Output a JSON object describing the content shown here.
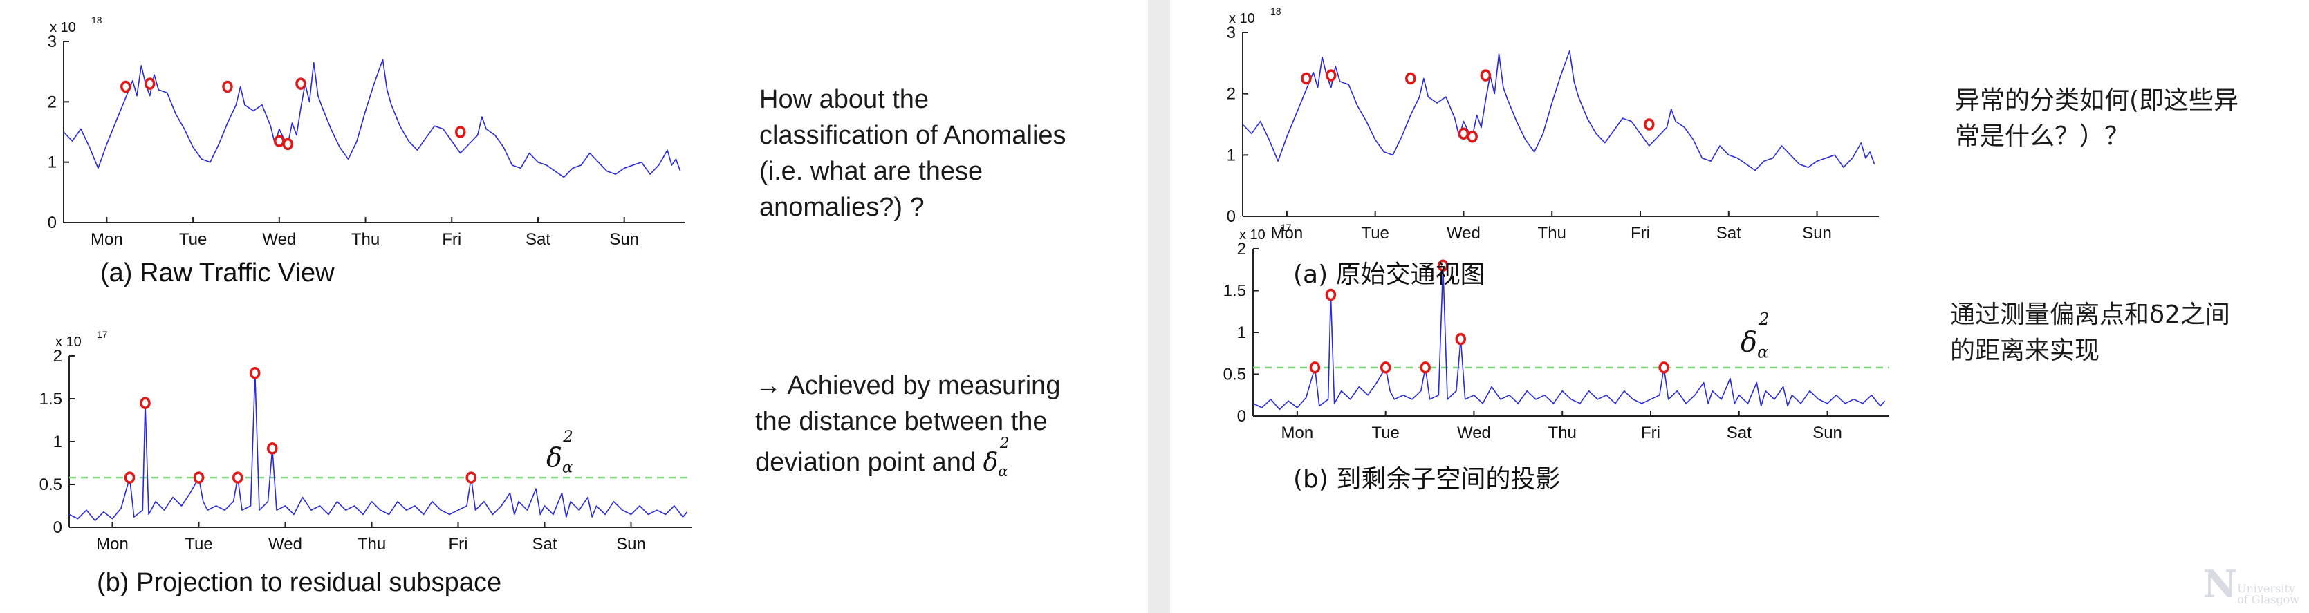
{
  "left": {
    "caption_a": "(a) Raw Traffic View",
    "caption_b": "(b) Projection to residual subspace",
    "question_lines": [
      "How about the",
      "classification of Anomalies",
      "(i.e. what are these",
      "anomalies?) ?"
    ],
    "answer_lines": [
      "→ Achieved by measuring",
      "the distance between the",
      "deviation point and"
    ],
    "delta_symbol": "δ",
    "delta_sub": "α",
    "delta_sup": "2"
  },
  "right": {
    "caption_a": "(a) 原始交通视图",
    "caption_b": "(b) 到剩余子空间的投影",
    "question_lines": [
      "异常的分类如何(即这些异",
      "常是什么？）？"
    ],
    "answer_lines": [
      "通过测量偏离点和δ2之间",
      "的距离来实现"
    ],
    "delta_symbol": "δ",
    "delta_sub": "α",
    "delta_sup": "2"
  },
  "watermark": {
    "big": "N",
    "line1": "University",
    "line2": "of Glasgow"
  },
  "colors": {
    "line": "#2a2ad8",
    "threshold": "#7fd67f",
    "marker": "#e01818",
    "axis": "#222222"
  },
  "chart_data": [
    {
      "id": "raw-traffic",
      "type": "line",
      "xlabel": "",
      "ylabel": "",
      "exponent_label": "x 10",
      "exponent_power": "18",
      "categories": [
        "Mon",
        "Tue",
        "Wed",
        "Thu",
        "Fri",
        "Sat",
        "Sun"
      ],
      "x_range": [
        0,
        7.2
      ],
      "ylim": [
        0,
        3
      ],
      "yticks": [
        0,
        1,
        2,
        3
      ],
      "series": [
        {
          "points": [
            [
              0.0,
              1.5
            ],
            [
              0.1,
              1.35
            ],
            [
              0.2,
              1.55
            ],
            [
              0.3,
              1.25
            ],
            [
              0.4,
              0.9
            ],
            [
              0.5,
              1.3
            ],
            [
              0.6,
              1.65
            ],
            [
              0.7,
              2.0
            ],
            [
              0.8,
              2.35
            ],
            [
              0.85,
              2.1
            ],
            [
              0.9,
              2.6
            ],
            [
              0.95,
              2.3
            ],
            [
              1.0,
              2.1
            ],
            [
              1.05,
              2.45
            ],
            [
              1.1,
              2.2
            ],
            [
              1.2,
              2.15
            ],
            [
              1.3,
              1.8
            ],
            [
              1.4,
              1.55
            ],
            [
              1.5,
              1.25
            ],
            [
              1.6,
              1.05
            ],
            [
              1.7,
              1.0
            ],
            [
              1.8,
              1.3
            ],
            [
              1.9,
              1.65
            ],
            [
              2.0,
              1.95
            ],
            [
              2.05,
              2.25
            ],
            [
              2.1,
              1.95
            ],
            [
              2.2,
              1.85
            ],
            [
              2.3,
              1.95
            ],
            [
              2.4,
              1.6
            ],
            [
              2.45,
              1.3
            ],
            [
              2.5,
              1.55
            ],
            [
              2.55,
              1.4
            ],
            [
              2.6,
              1.3
            ],
            [
              2.65,
              1.65
            ],
            [
              2.7,
              1.45
            ],
            [
              2.75,
              1.9
            ],
            [
              2.8,
              2.3
            ],
            [
              2.85,
              2.0
            ],
            [
              2.9,
              2.65
            ],
            [
              2.95,
              2.1
            ],
            [
              3.0,
              1.9
            ],
            [
              3.1,
              1.55
            ],
            [
              3.2,
              1.25
            ],
            [
              3.3,
              1.05
            ],
            [
              3.4,
              1.35
            ],
            [
              3.5,
              1.85
            ],
            [
              3.6,
              2.3
            ],
            [
              3.7,
              2.7
            ],
            [
              3.75,
              2.2
            ],
            [
              3.8,
              1.95
            ],
            [
              3.9,
              1.6
            ],
            [
              4.0,
              1.35
            ],
            [
              4.1,
              1.2
            ],
            [
              4.2,
              1.4
            ],
            [
              4.3,
              1.6
            ],
            [
              4.4,
              1.55
            ],
            [
              4.5,
              1.35
            ],
            [
              4.6,
              1.15
            ],
            [
              4.7,
              1.3
            ],
            [
              4.8,
              1.45
            ],
            [
              4.85,
              1.75
            ],
            [
              4.9,
              1.55
            ],
            [
              5.0,
              1.45
            ],
            [
              5.1,
              1.25
            ],
            [
              5.2,
              0.95
            ],
            [
              5.3,
              0.9
            ],
            [
              5.4,
              1.15
            ],
            [
              5.5,
              1.0
            ],
            [
              5.6,
              0.95
            ],
            [
              5.7,
              0.85
            ],
            [
              5.8,
              0.75
            ],
            [
              5.9,
              0.9
            ],
            [
              6.0,
              0.95
            ],
            [
              6.1,
              1.15
            ],
            [
              6.2,
              1.0
            ],
            [
              6.3,
              0.85
            ],
            [
              6.4,
              0.8
            ],
            [
              6.5,
              0.9
            ],
            [
              6.6,
              0.95
            ],
            [
              6.7,
              1.0
            ],
            [
              6.8,
              0.8
            ],
            [
              6.9,
              0.95
            ],
            [
              7.0,
              1.2
            ],
            [
              7.05,
              0.95
            ],
            [
              7.1,
              1.05
            ],
            [
              7.15,
              0.85
            ]
          ]
        }
      ],
      "anomalies": [
        [
          0.72,
          2.25
        ],
        [
          1.0,
          2.3
        ],
        [
          1.9,
          2.25
        ],
        [
          2.5,
          1.35
        ],
        [
          2.6,
          1.3
        ],
        [
          2.75,
          2.3
        ],
        [
          4.6,
          1.5
        ]
      ]
    },
    {
      "id": "residual-projection",
      "type": "line",
      "xlabel": "",
      "ylabel": "",
      "exponent_label": "x 10",
      "exponent_power": "17",
      "categories": [
        "Mon",
        "Tue",
        "Wed",
        "Thu",
        "Fri",
        "Sat",
        "Sun"
      ],
      "x_range": [
        0,
        7.2
      ],
      "ylim": [
        0,
        2
      ],
      "yticks": [
        0,
        0.5,
        1,
        1.5,
        2
      ],
      "ytick_labels": [
        "0",
        "0.5",
        "1",
        "1.5",
        "2"
      ],
      "threshold": 0.58,
      "series": [
        {
          "points": [
            [
              0.0,
              0.15
            ],
            [
              0.1,
              0.1
            ],
            [
              0.2,
              0.2
            ],
            [
              0.3,
              0.08
            ],
            [
              0.4,
              0.18
            ],
            [
              0.5,
              0.1
            ],
            [
              0.6,
              0.22
            ],
            [
              0.7,
              0.58
            ],
            [
              0.75,
              0.12
            ],
            [
              0.85,
              0.2
            ],
            [
              0.88,
              1.45
            ],
            [
              0.92,
              0.15
            ],
            [
              1.0,
              0.3
            ],
            [
              1.1,
              0.2
            ],
            [
              1.2,
              0.35
            ],
            [
              1.3,
              0.25
            ],
            [
              1.4,
              0.4
            ],
            [
              1.5,
              0.58
            ],
            [
              1.55,
              0.3
            ],
            [
              1.6,
              0.2
            ],
            [
              1.7,
              0.25
            ],
            [
              1.8,
              0.2
            ],
            [
              1.9,
              0.3
            ],
            [
              1.95,
              0.58
            ],
            [
              2.0,
              0.2
            ],
            [
              2.1,
              0.25
            ],
            [
              2.15,
              1.8
            ],
            [
              2.2,
              0.2
            ],
            [
              2.3,
              0.3
            ],
            [
              2.35,
              0.92
            ],
            [
              2.4,
              0.2
            ],
            [
              2.5,
              0.25
            ],
            [
              2.6,
              0.15
            ],
            [
              2.7,
              0.35
            ],
            [
              2.8,
              0.2
            ],
            [
              2.9,
              0.25
            ],
            [
              3.0,
              0.15
            ],
            [
              3.1,
              0.3
            ],
            [
              3.2,
              0.2
            ],
            [
              3.3,
              0.25
            ],
            [
              3.4,
              0.15
            ],
            [
              3.5,
              0.3
            ],
            [
              3.6,
              0.2
            ],
            [
              3.7,
              0.15
            ],
            [
              3.8,
              0.3
            ],
            [
              3.9,
              0.2
            ],
            [
              4.0,
              0.25
            ],
            [
              4.1,
              0.15
            ],
            [
              4.2,
              0.3
            ],
            [
              4.3,
              0.2
            ],
            [
              4.4,
              0.15
            ],
            [
              4.5,
              0.2
            ],
            [
              4.6,
              0.25
            ],
            [
              4.65,
              0.58
            ],
            [
              4.7,
              0.2
            ],
            [
              4.8,
              0.3
            ],
            [
              4.9,
              0.15
            ],
            [
              5.0,
              0.25
            ],
            [
              5.1,
              0.4
            ],
            [
              5.15,
              0.15
            ],
            [
              5.2,
              0.3
            ],
            [
              5.3,
              0.2
            ],
            [
              5.4,
              0.45
            ],
            [
              5.45,
              0.15
            ],
            [
              5.5,
              0.25
            ],
            [
              5.6,
              0.15
            ],
            [
              5.7,
              0.4
            ],
            [
              5.75,
              0.12
            ],
            [
              5.8,
              0.3
            ],
            [
              5.9,
              0.2
            ],
            [
              6.0,
              0.35
            ],
            [
              6.05,
              0.12
            ],
            [
              6.1,
              0.25
            ],
            [
              6.2,
              0.15
            ],
            [
              6.3,
              0.3
            ],
            [
              6.4,
              0.2
            ],
            [
              6.5,
              0.15
            ],
            [
              6.6,
              0.25
            ],
            [
              6.7,
              0.15
            ],
            [
              6.8,
              0.2
            ],
            [
              6.9,
              0.15
            ],
            [
              7.0,
              0.25
            ],
            [
              7.1,
              0.12
            ],
            [
              7.15,
              0.18
            ]
          ]
        }
      ],
      "anomalies": [
        [
          0.7,
          0.58
        ],
        [
          0.88,
          1.45
        ],
        [
          1.5,
          0.58
        ],
        [
          1.95,
          0.58
        ],
        [
          2.15,
          1.8
        ],
        [
          2.35,
          0.92
        ],
        [
          4.65,
          0.58
        ]
      ]
    }
  ]
}
